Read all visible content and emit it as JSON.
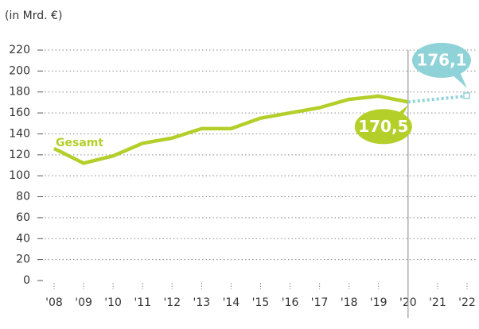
{
  "chart_data": {
    "type": "line",
    "y_label": "(in Mrd. €)",
    "categories": [
      "'08",
      "'09",
      "'10",
      "'11",
      "'12",
      "'13",
      "'14",
      "'15",
      "'16",
      "'17",
      "'18",
      "'19",
      "'20",
      "'21",
      "'22"
    ],
    "series": [
      {
        "name": "Gesamt",
        "color": "#b5cf2a",
        "style": "solid",
        "values": [
          126,
          112,
          119,
          131,
          136,
          145,
          145,
          155,
          160,
          165,
          173,
          176,
          170.5,
          null,
          null
        ],
        "value_labels": [
          null,
          null,
          null,
          null,
          null,
          null,
          null,
          null,
          null,
          null,
          null,
          null,
          "170,5",
          null,
          null
        ]
      },
      {
        "color": "#8fd3d8",
        "style": "dotted",
        "values": [
          null,
          null,
          null,
          null,
          null,
          null,
          null,
          null,
          null,
          null,
          null,
          null,
          170.5,
          173.3,
          176.1
        ],
        "value_labels": [
          null,
          null,
          null,
          null,
          null,
          null,
          null,
          null,
          null,
          null,
          null,
          null,
          null,
          null,
          "176,1"
        ]
      }
    ],
    "ylim": [
      0,
      220
    ],
    "yticks": [
      0,
      20,
      40,
      60,
      80,
      100,
      120,
      140,
      160,
      180,
      200,
      220
    ],
    "grid": true
  }
}
